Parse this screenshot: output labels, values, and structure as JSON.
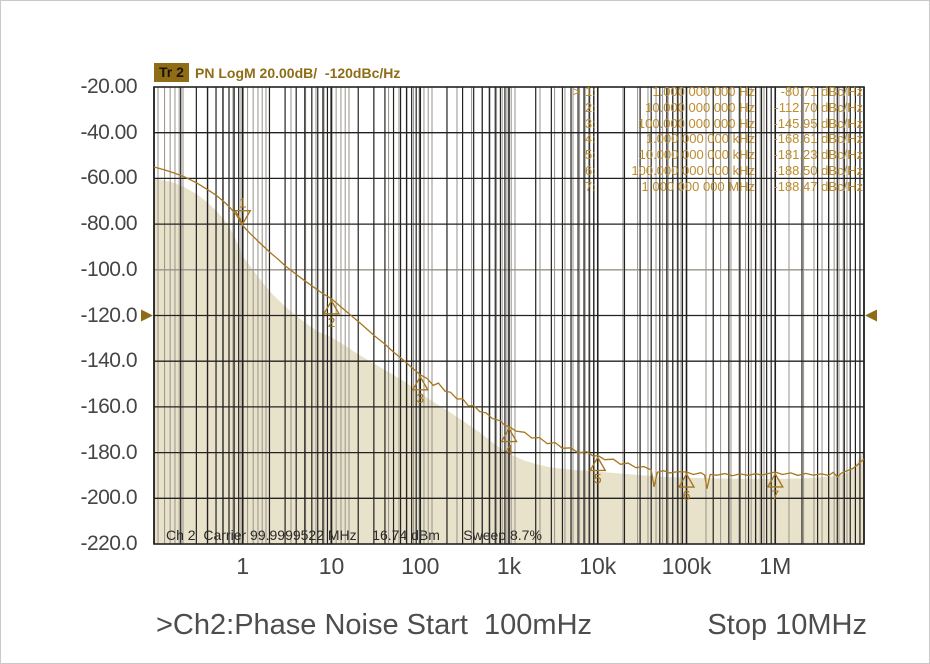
{
  "header": {
    "trace_badge": "Tr 2",
    "annotation": "PN LogM 20.00dB/  -120dBc/Hz"
  },
  "marker_table": {
    "rows": [
      {
        "sel": ">",
        "num": "1:",
        "freq": "1.000 000 000 Hz",
        "value": "-80.71 dBc/Hz"
      },
      {
        "sel": "",
        "num": "2:",
        "freq": "10.000 000 000 Hz",
        "value": "-112.70 dBc/Hz"
      },
      {
        "sel": "",
        "num": "3:",
        "freq": "100.000 000 000 Hz",
        "value": "-145.95 dBc/Hz"
      },
      {
        "sel": "",
        "num": "4:",
        "freq": "1.000 000 000 kHz",
        "value": "-168.61 dBc/Hz"
      },
      {
        "sel": "",
        "num": "5:",
        "freq": "10.000 000 000 kHz",
        "value": "-181.23 dBc/Hz"
      },
      {
        "sel": "",
        "num": "6:",
        "freq": "100.000 000 000 kHz",
        "value": "-188.50 dBc/Hz"
      },
      {
        "sel": "",
        "num": "7:",
        "freq": "1.000 000 000 MHz",
        "value": "-188.47 dBc/Hz"
      }
    ]
  },
  "status_bar": {
    "channel": "Ch 2",
    "carrier": "Carrier 99.9999522 MHz",
    "power": "16.74 dBm",
    "sweep": "Sweep 8.7%"
  },
  "footer": {
    "channel_title": ">Ch2:Phase Noise Start  100mHz",
    "stop_label": "Stop 10MHz"
  },
  "colors": {
    "trace": "#a6771f",
    "fill": "#e9e2ca",
    "grid_black": "#222222",
    "grid_gray": "#97928a",
    "accent_gold": "#8e6d16",
    "marker_text": "#bd8c2b",
    "axis_text": "#454545"
  },
  "chart_data": {
    "type": "line",
    "title": "Ch2 Phase Noise",
    "x_scale": "log",
    "x_range_hz": [
      0.1,
      10000000
    ],
    "x_tick_labels": [
      "1",
      "10",
      "100",
      "1k",
      "10k",
      "100k",
      "1M"
    ],
    "x_tick_freqs": [
      1,
      10,
      100,
      1000,
      10000,
      100000,
      1000000
    ],
    "ylabel": "dBc/Hz",
    "y_range": [
      -220,
      -20
    ],
    "y_tick_labels": [
      "-20.00",
      "-40.00",
      "-60.00",
      "-80.00",
      "-100.0",
      "-120.0",
      "-140.0",
      "-160.0",
      "-180.0",
      "-200.0",
      "-220.0"
    ],
    "scale_per_div": "20.00dB/",
    "reference_level_dbchz": -120,
    "start": "100mHz",
    "stop": "10MHz",
    "markers": [
      {
        "n": "1",
        "f": 1,
        "db": -80.71,
        "active": true
      },
      {
        "n": "2",
        "f": 10,
        "db": -112.7,
        "active": false
      },
      {
        "n": "3",
        "f": 100,
        "db": -145.95,
        "active": false
      },
      {
        "n": "4",
        "f": 1000,
        "db": -168.61,
        "active": false
      },
      {
        "n": "5",
        "f": 10000,
        "db": -181.23,
        "active": false
      },
      {
        "n": "6",
        "f": 100000,
        "db": -188.5,
        "active": false
      },
      {
        "n": "7",
        "f": 1000000,
        "db": -188.47,
        "active": false
      }
    ],
    "series": [
      {
        "name": "pn-trace",
        "points": [
          [
            0.1,
            -55.0
          ],
          [
            0.13,
            -56.2
          ],
          [
            0.17,
            -57.7
          ],
          [
            0.22,
            -59.3
          ],
          [
            0.3,
            -61.9
          ],
          [
            0.4,
            -64.9
          ],
          [
            0.5,
            -67.3
          ],
          [
            0.6,
            -69.9
          ],
          [
            0.7,
            -72.3
          ],
          [
            0.85,
            -76.0
          ],
          [
            1,
            -80.7
          ],
          [
            1.2,
            -84.0
          ],
          [
            1.5,
            -87.6
          ],
          [
            2,
            -92.2
          ],
          [
            2.5,
            -95.4
          ],
          [
            3,
            -98.2
          ],
          [
            4,
            -102.0
          ],
          [
            5,
            -104.8
          ],
          [
            6,
            -107.0
          ],
          [
            8,
            -110.4
          ],
          [
            10,
            -112.7
          ],
          [
            13,
            -116.5
          ],
          [
            17,
            -120.3
          ],
          [
            22,
            -124.0
          ],
          [
            30,
            -128.6
          ],
          [
            40,
            -132.5
          ],
          [
            50,
            -136.0
          ],
          [
            65,
            -139.6
          ],
          [
            80,
            -142.7
          ],
          [
            100,
            -145.95
          ],
          [
            120,
            -147.6
          ],
          [
            140,
            -150.6
          ],
          [
            160,
            -149.6
          ],
          [
            190,
            -153.1
          ],
          [
            220,
            -153.6
          ],
          [
            260,
            -156.6
          ],
          [
            300,
            -156.4
          ],
          [
            350,
            -159.6
          ],
          [
            400,
            -159.4
          ],
          [
            470,
            -162.1
          ],
          [
            550,
            -162.6
          ],
          [
            650,
            -165.1
          ],
          [
            800,
            -166.1
          ],
          [
            900,
            -168.1
          ],
          [
            1000,
            -168.61
          ],
          [
            1200,
            -170.6
          ],
          [
            1500,
            -171.1
          ],
          [
            1800,
            -173.6
          ],
          [
            2200,
            -173.4
          ],
          [
            2700,
            -176.1
          ],
          [
            3300,
            -175.6
          ],
          [
            4000,
            -178.1
          ],
          [
            5000,
            -177.9
          ],
          [
            6000,
            -180.1
          ],
          [
            7500,
            -179.6
          ],
          [
            9000,
            -181.6
          ],
          [
            10000,
            -181.23
          ],
          [
            12000,
            -183.1
          ],
          [
            15000,
            -182.9
          ],
          [
            18000,
            -185.1
          ],
          [
            22000,
            -184.6
          ],
          [
            27000,
            -186.6
          ],
          [
            33000,
            -186.1
          ],
          [
            40000,
            -187.6
          ],
          [
            43000,
            -195.0
          ],
          [
            47000,
            -188.6
          ],
          [
            55000,
            -187.9
          ],
          [
            65000,
            -188.9
          ],
          [
            80000,
            -188.3
          ],
          [
            100000,
            -188.5
          ],
          [
            120000,
            -189.6
          ],
          [
            145000,
            -188.8
          ],
          [
            160000,
            -189.8
          ],
          [
            170000,
            -195.8
          ],
          [
            185000,
            -189.6
          ],
          [
            220000,
            -189.9
          ],
          [
            270000,
            -189.2
          ],
          [
            330000,
            -190.1
          ],
          [
            400000,
            -189.3
          ],
          [
            500000,
            -190.0
          ],
          [
            600000,
            -189.2
          ],
          [
            700000,
            -189.9
          ],
          [
            850000,
            -189.1
          ],
          [
            1000000,
            -188.47
          ],
          [
            1200000,
            -189.6
          ],
          [
            1500000,
            -188.9
          ],
          [
            1800000,
            -190.0
          ],
          [
            2200000,
            -189.1
          ],
          [
            2700000,
            -189.9
          ],
          [
            3300000,
            -189.3
          ],
          [
            4000000,
            -190.0
          ],
          [
            4500000,
            -188.6
          ],
          [
            5000000,
            -190.6
          ],
          [
            5600000,
            -188.9
          ],
          [
            6500000,
            -187.9
          ],
          [
            7500000,
            -186.9
          ],
          [
            8500000,
            -185.3
          ],
          [
            9300000,
            -183.9
          ],
          [
            10000000,
            -182.8
          ]
        ]
      },
      {
        "name": "filled-trace",
        "points": [
          [
            0.1,
            -60
          ],
          [
            0.13,
            -60.8
          ],
          [
            0.17,
            -62
          ],
          [
            0.22,
            -63.8
          ],
          [
            0.3,
            -66.8
          ],
          [
            0.4,
            -70.5
          ],
          [
            0.5,
            -74
          ],
          [
            0.65,
            -79
          ],
          [
            0.8,
            -85
          ],
          [
            1,
            -94
          ],
          [
            1.3,
            -100
          ],
          [
            1.7,
            -106
          ],
          [
            2.2,
            -111
          ],
          [
            3,
            -116
          ],
          [
            4,
            -120
          ],
          [
            5,
            -123
          ],
          [
            7,
            -127
          ],
          [
            10,
            -129.5
          ],
          [
            14,
            -133
          ],
          [
            20,
            -137
          ],
          [
            30,
            -141
          ],
          [
            50,
            -146
          ],
          [
            70,
            -149.5
          ],
          [
            100,
            -154
          ],
          [
            150,
            -158.5
          ],
          [
            200,
            -161.5
          ],
          [
            300,
            -166
          ],
          [
            500,
            -172
          ],
          [
            700,
            -176.5
          ],
          [
            1000,
            -180.5
          ],
          [
            1500,
            -183.5
          ],
          [
            2000,
            -185
          ],
          [
            3000,
            -186.5
          ],
          [
            5000,
            -187.5
          ],
          [
            8000,
            -188
          ],
          [
            10000,
            -188.3
          ],
          [
            20000,
            -189.3
          ],
          [
            50000,
            -190.5
          ],
          [
            100000,
            -191
          ],
          [
            200000,
            -191.3
          ],
          [
            500000,
            -191.5
          ],
          [
            1000000,
            -191.5
          ],
          [
            2000000,
            -191.3
          ],
          [
            3000000,
            -191
          ],
          [
            5000000,
            -190.2
          ],
          [
            6500000,
            -189
          ],
          [
            8000000,
            -185.5
          ],
          [
            9000000,
            -182
          ],
          [
            10000000,
            -179
          ]
        ]
      }
    ]
  }
}
